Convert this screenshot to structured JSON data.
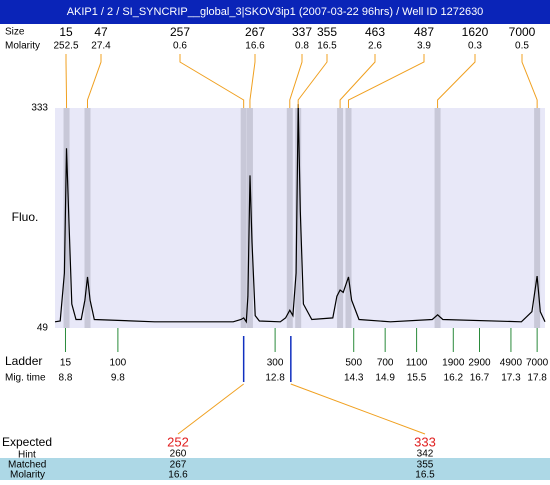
{
  "title": "AKIP1 / 2 / SI_SYNCRIP__global_3|SKOV3ip1 (2007-03-22 96hrs) / Well ID 1272630",
  "chart_data": {
    "type": "line",
    "ylabel": "Fluo.",
    "color": "#000000",
    "background": "#e8e8f8",
    "xlim": [
      8.6,
      17.95
    ],
    "ylim": [
      49,
      333
    ],
    "yticks": [
      49,
      333
    ],
    "x": [
      8.6,
      8.7,
      8.78,
      8.82,
      8.86,
      8.92,
      9.0,
      9.1,
      9.17,
      9.22,
      9.27,
      9.35,
      10.5,
      12.0,
      12.15,
      12.2,
      12.25,
      12.28,
      12.32,
      12.36,
      12.42,
      12.5,
      12.9,
      13.0,
      13.08,
      13.14,
      13.2,
      13.24,
      13.28,
      13.34,
      13.5,
      13.9,
      13.98,
      14.04,
      14.1,
      14.2,
      14.26,
      14.4,
      15.0,
      15.8,
      15.9,
      16.0,
      17.5,
      17.7,
      17.8,
      17.86,
      17.95
    ],
    "values": [
      57,
      58,
      120,
      281,
      200,
      80,
      60,
      60,
      85,
      115,
      85,
      60,
      57,
      57,
      60,
      62,
      57,
      90,
      246,
      160,
      65,
      58,
      57,
      62,
      72,
      65,
      120,
      338,
      200,
      80,
      60,
      62,
      90,
      98,
      95,
      115,
      85,
      60,
      57,
      60,
      66,
      60,
      57,
      70,
      116,
      70,
      57
    ]
  },
  "peaks": {
    "label_size": "Size",
    "label_molarity": "Molarity",
    "size": [
      15,
      47,
      257,
      267,
      337,
      355,
      463,
      487,
      1620,
      7000
    ],
    "molarity": [
      252.5,
      27.4,
      0.6,
      16.6,
      0.8,
      16.5,
      2.6,
      3.9,
      0.3,
      0.5
    ],
    "time": [
      8.82,
      9.22,
      12.2,
      12.32,
      13.08,
      13.24,
      14.04,
      14.2,
      15.9,
      17.8
    ]
  },
  "ladder": {
    "label": "Ladder",
    "label_time": "Mig. time",
    "size": [
      15,
      100,
      300,
      500,
      700,
      1100,
      1900,
      2900,
      4900,
      7000
    ],
    "time": [
      8.8,
      9.8,
      12.8,
      14.3,
      14.9,
      15.5,
      16.2,
      16.7,
      17.3,
      17.8
    ]
  },
  "expected": {
    "label": "Expected",
    "label_hint": "Hint",
    "label_matched": "Matched",
    "label_molarity": "Molarity",
    "size": [
      252,
      333
    ],
    "hint": [
      260,
      342
    ],
    "matched": [
      267,
      355
    ],
    "molarity": [
      16.6,
      16.5
    ],
    "time": [
      12.2,
      13.1
    ]
  }
}
